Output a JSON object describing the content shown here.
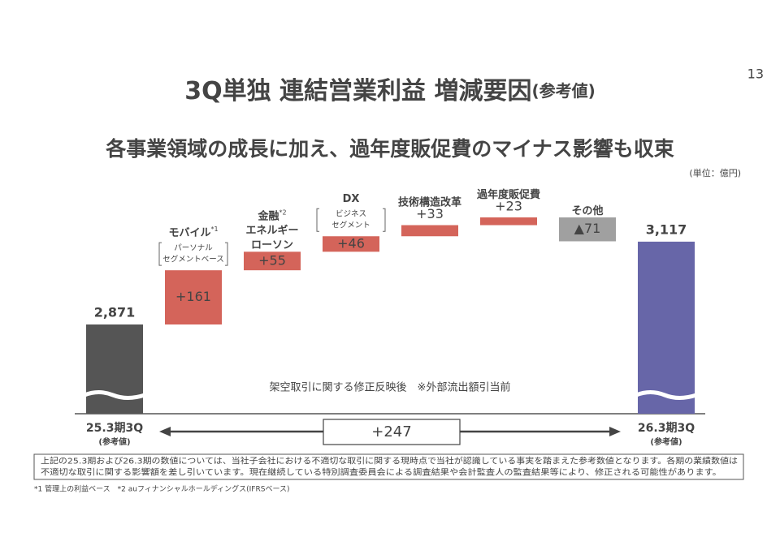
{
  "page_number": "13",
  "title": "3Q単独 連結営業利益 増減要因",
  "title_suffix": "(参考値)",
  "subtitle": "各事業領域の成長に加え、過年度販促費のマイナス影響も収束",
  "unit": "(単位：億円)",
  "notes": [
    "上記の25.3期および26.3期の数値については、当社子会社における不適切な取引に関する現時点で当社が認識している事実を踏まえた参考数値となります。各期の業績数値は",
    "不適切な取引に関する影響額を差し引いています。現在継続している特別調査委員会による調査結果や会計監査人の監査結果等により、修正される可能性があります。"
  ],
  "footnote": "*1 管理上の利益ベース　*2 auフィナンシャルホールディングス(IFRSベース)",
  "chart_data": {
    "type": "waterfall",
    "categories": [
      "25.3期3Q",
      "モバイル",
      "金融",
      "DX",
      "技術構造改革",
      "過年度販促費",
      "その他",
      "26.3期3Q"
    ],
    "category_extra": [
      {
        "sub": "(参考値)"
      },
      {
        "sup": "*1",
        "sub_lines": [
          "パーソナル",
          "セグメントベース"
        ]
      },
      {
        "sup": "*2",
        "lines": [
          "エネルギー",
          "ローソン"
        ]
      },
      {
        "sub_lines": [
          "ビジネス",
          "セグメント"
        ]
      },
      {},
      {},
      {},
      {
        "sub": "(参考値)"
      }
    ],
    "values": [
      2871,
      161,
      55,
      46,
      33,
      23,
      -71,
      3117
    ],
    "value_labels": [
      "2,871",
      "+161",
      "+55",
      "+46",
      "+33",
      "+23",
      "▲71",
      "3,117"
    ],
    "colors": {
      "start": "#555555",
      "increase": "#d4645a",
      "decrease": "#a0a0a0",
      "end": "#6766a8"
    },
    "annotation": "架空取引に関する修正反映後　※外部流出額引当前",
    "delta": 247,
    "delta_label": "+247"
  }
}
